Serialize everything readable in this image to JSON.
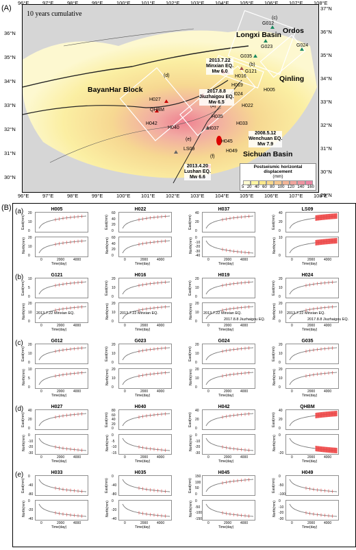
{
  "panel_a_label": "(A)",
  "panel_b_label": "(B)",
  "map": {
    "cumulative_label": "10 years cumulative",
    "top_lon": [
      "96°E",
      "97°E",
      "98°E",
      "99°E",
      "100°E",
      "101°E",
      "102°E",
      "103°E",
      "104°E",
      "105°E",
      "106°E",
      "107°E",
      "108°E"
    ],
    "bottom_lon": [
      "96°E",
      "97°E",
      "98°E",
      "99°E",
      "100°E",
      "101°E",
      "102°E",
      "103°E",
      "104°E",
      "105°E",
      "106°E",
      "107°E",
      "108°E"
    ],
    "left_lat": [
      "36°N",
      "35°N",
      "34°N",
      "33°N",
      "32°N",
      "31°N",
      "30°N"
    ],
    "right_lat": [
      "37°N",
      "36°N",
      "35°N",
      "34°N",
      "33°N",
      "32°N",
      "31°N",
      "30°N",
      "29°N"
    ],
    "regions": {
      "bayanhar": "BayanHar Block",
      "longxi": "Longxi Basin",
      "ordos": "Ordos",
      "qinling": "Qinling",
      "sichuan": "Sichuan Basin"
    },
    "stations": [
      "G012",
      "G024",
      "G023",
      "G035",
      "G121",
      "H016",
      "H019",
      "H024",
      "H005",
      "H022",
      "H027",
      "QHBM",
      "H042",
      "H040",
      "H037",
      "H035",
      "H033",
      "H045",
      "H049",
      "LS09"
    ],
    "profiles": [
      "(a)",
      "(b)",
      "(c)",
      "(d)",
      "(e)",
      "(f)"
    ],
    "earthquakes": [
      {
        "date": "2013.7.22",
        "name": "Minxian EQ.",
        "mag": "Mw 6.0"
      },
      {
        "date": "2017.8.8",
        "name": "Jiuzhaigou EQ.",
        "mag": "Mw 6.5"
      },
      {
        "date": "2008.5.12",
        "name": "Wenchuan EQ.",
        "mag": "Mw 7.9"
      },
      {
        "date": "2013.4.20",
        "name": "Lushan EQ.",
        "mag": "Mw 6.6"
      }
    ],
    "legend": {
      "title": "Postseismic horizontal",
      "title2": "displacement",
      "unit": "(mm)",
      "ticks": [
        "5",
        "20",
        "40",
        "60",
        "80",
        "100",
        "120",
        "140",
        "160"
      ],
      "colors": [
        "#fffbd0",
        "#fff5a0",
        "#fbe88a",
        "#f8d88a",
        "#f5c890",
        "#f2b596",
        "#f0a49c",
        "#ee94a0",
        "#ec86a4"
      ]
    }
  },
  "panel_b": {
    "row_labels": [
      "(a)",
      "(b)",
      "(c)",
      "(d)",
      "(e)"
    ],
    "east_label": "East(mm)",
    "north_label": "North(mm)",
    "time_label": "Time(day)",
    "x_ticks": [
      "0",
      "2000",
      "4000"
    ],
    "rows": [
      [
        {
          "name": "H005",
          "e": [
            "20",
            "10",
            "0"
          ],
          "n": [
            "20",
            "10",
            "0"
          ]
        },
        {
          "name": "H022",
          "e": [
            "60",
            "40",
            "20",
            "0"
          ],
          "n": [
            "60",
            "40",
            "20",
            "0"
          ]
        },
        {
          "name": "H037",
          "e": [
            "40",
            "20",
            "0"
          ],
          "n": [
            "0",
            "-10",
            "-20",
            "-30",
            "-40"
          ]
        },
        {
          "name": "LS09",
          "e": [
            "40",
            "20",
            "0"
          ],
          "n": [
            "10",
            "0"
          ]
        }
      ],
      [
        {
          "name": "G121",
          "e": [
            "10",
            "5",
            "0"
          ],
          "n": [
            "20",
            "10",
            "0"
          ]
        },
        {
          "name": "H016",
          "e": [
            "20",
            "10",
            "0"
          ],
          "n": [
            "20",
            "10",
            "0"
          ]
        },
        {
          "name": "H019",
          "e": [
            "20",
            "10",
            "0"
          ],
          "n": [
            "20",
            "10",
            "0"
          ]
        },
        {
          "name": "H024",
          "e": [
            "20",
            "10",
            "0"
          ],
          "n": [
            "20",
            "10",
            "0"
          ]
        }
      ],
      [
        {
          "name": "G012",
          "e": [
            "20",
            "10",
            "0"
          ],
          "n": [
            "10",
            "5",
            "0"
          ]
        },
        {
          "name": "G023",
          "e": [
            "20",
            "10",
            "0"
          ],
          "n": [
            "20",
            "10",
            "0"
          ]
        },
        {
          "name": "G024",
          "e": [
            "20",
            "10",
            "0"
          ],
          "n": [
            "20",
            "10",
            "0"
          ]
        },
        {
          "name": "G035",
          "e": [
            "20",
            "10",
            "0"
          ],
          "n": [
            "20",
            "10",
            "0"
          ]
        }
      ],
      [
        {
          "name": "H027",
          "e": [
            "40",
            "20",
            "0"
          ],
          "n": [
            "0",
            "-10",
            "-20",
            "-30"
          ]
        },
        {
          "name": "H040",
          "e": [
            "80",
            "60",
            "40",
            "20",
            "0"
          ],
          "n": [
            "0",
            "-5",
            "-10",
            "-15"
          ]
        },
        {
          "name": "H042",
          "e": [
            "40",
            "20",
            "0"
          ],
          "n": [
            "0",
            "-10",
            "-20",
            "-30"
          ]
        },
        {
          "name": "QHBM",
          "e": [
            "40",
            "20",
            "0"
          ],
          "n": [
            "0",
            "-20"
          ]
        }
      ],
      [
        {
          "name": "H033",
          "e": [
            "0",
            "-40",
            "-80"
          ],
          "n": [
            "0",
            "-20",
            "-40"
          ]
        },
        {
          "name": "H035",
          "e": [
            "0",
            "-40",
            "-80"
          ],
          "n": [
            "0",
            "-20",
            "-40"
          ]
        },
        {
          "name": "H045",
          "e": [
            "150",
            "100",
            "50",
            "0"
          ],
          "n": [
            "0",
            "-50",
            "-100",
            "-150"
          ]
        },
        {
          "name": "H049",
          "e": [
            "0",
            "-50",
            "-100"
          ],
          "n": [
            "0",
            "-10",
            "-20",
            "-30"
          ]
        }
      ]
    ],
    "annotations": {
      "minxian": "2013.7.22 Minxian EQ.",
      "jiuzhaigou": "2017.8.8 Jiuzhaigou EQ."
    }
  }
}
